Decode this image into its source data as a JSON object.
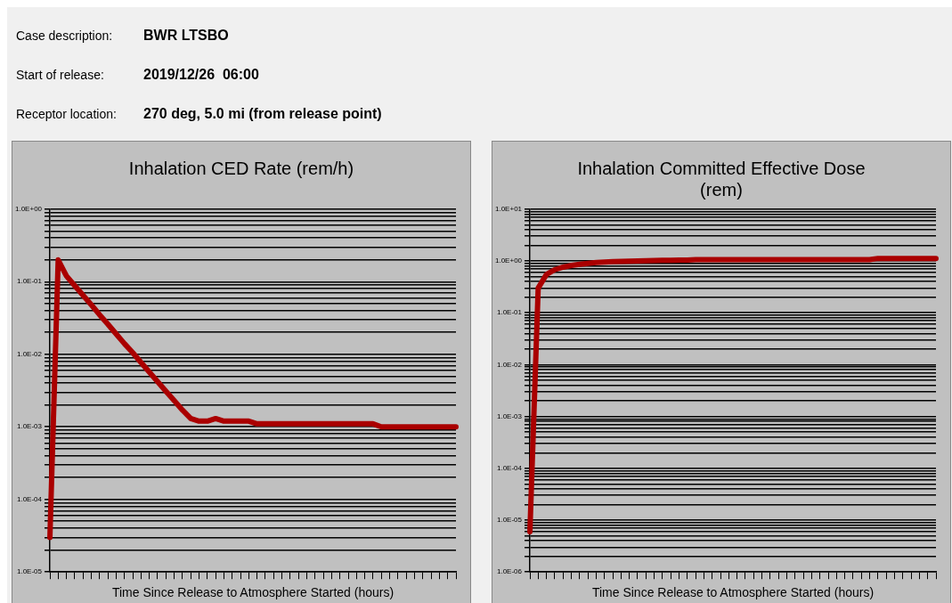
{
  "chart_data": [
    {
      "type": "line",
      "title": "Inhalation CED Rate (rem/h)",
      "xlabel": "Time Since Release to Atmosphere Started (hours)",
      "annotations": [
        "Case description:",
        "BWR LTSBO",
        "Start of release:",
        "2019/12/26  06:00",
        "Receptor location:",
        "270 deg, 5.0 mi (from release point)"
      ],
      "categories": [
        null,
        null,
        null,
        null,
        null,
        null,
        null,
        null,
        null,
        null,
        null,
        null,
        null,
        null,
        null,
        null,
        null,
        null,
        null,
        null,
        null,
        null,
        null,
        null,
        null,
        null,
        null,
        null,
        null,
        null,
        null,
        null,
        null,
        null,
        null,
        null,
        null,
        null,
        null,
        null,
        null,
        null,
        null,
        null,
        null,
        null,
        null,
        null,
        null,
        null
      ],
      "series": [
        {
          "color": "#aa0000",
          "values": [
            3e-05,
            0.2,
            0.12,
            0.088,
            0.065,
            0.048,
            0.035,
            0.026,
            0.019,
            0.014,
            0.0105,
            0.0077,
            0.0057,
            0.0042,
            0.0031,
            0.0023,
            0.0017,
            0.0013,
            0.0012,
            0.0012,
            0.0013,
            0.0012,
            0.0012,
            0.0012,
            0.0012,
            0.0011,
            0.0011,
            0.0011,
            0.0011,
            0.0011,
            0.0011,
            0.0011,
            0.0011,
            0.0011,
            0.0011,
            0.0011,
            0.0011,
            0.0011,
            0.0011,
            0.0011,
            0.001,
            0.001,
            0.001,
            0.001,
            0.001,
            0.001,
            0.001,
            0.001,
            0.001,
            0.001
          ]
        }
      ],
      "log": "y",
      "ylim": [
        1e-05,
        1
      ],
      "grid": "y",
      "tick_labels": "y",
      "line_style": "solid",
      "yticks": [
        {
          "value": 1e-05,
          "label": "1.0E-05"
        },
        {
          "value": 2e-05,
          "label": null
        },
        {
          "value": 3e-05,
          "label": null
        },
        {
          "value": 4e-05,
          "label": null
        },
        {
          "value": 5e-05,
          "label": null
        },
        {
          "value": 6e-05,
          "label": null
        },
        {
          "value": 7e-05,
          "label": null
        },
        {
          "value": 8e-05,
          "label": null
        },
        {
          "value": 9e-05,
          "label": null
        },
        {
          "value": 0.0001,
          "label": "1.0E-04"
        },
        {
          "value": 0.0002,
          "label": null
        },
        {
          "value": 0.0003,
          "label": null
        },
        {
          "value": 0.0004,
          "label": null
        },
        {
          "value": 0.0005,
          "label": null
        },
        {
          "value": 0.0006,
          "label": null
        },
        {
          "value": 0.0007,
          "label": null
        },
        {
          "value": 0.0008,
          "label": null
        },
        {
          "value": 0.0009,
          "label": null
        },
        {
          "value": 0.001,
          "label": "1.0E-03"
        },
        {
          "value": 0.002,
          "label": null
        },
        {
          "value": 0.003,
          "label": null
        },
        {
          "value": 0.004,
          "label": null
        },
        {
          "value": 0.005,
          "label": null
        },
        {
          "value": 0.006,
          "label": null
        },
        {
          "value": 0.007,
          "label": null
        },
        {
          "value": 0.008,
          "label": null
        },
        {
          "value": 0.009,
          "label": null
        },
        {
          "value": 0.01,
          "label": "1.0E-02"
        },
        {
          "value": 0.02,
          "label": null
        },
        {
          "value": 0.03,
          "label": null
        },
        {
          "value": 0.04,
          "label": null
        },
        {
          "value": 0.05,
          "label": null
        },
        {
          "value": 0.06,
          "label": null
        },
        {
          "value": 0.07,
          "label": null
        },
        {
          "value": 0.08,
          "label": null
        },
        {
          "value": 0.09,
          "label": null
        },
        {
          "value": 0.1,
          "label": "1.0E-01"
        },
        {
          "value": 0.2,
          "label": null
        },
        {
          "value": 0.3,
          "label": null
        },
        {
          "value": 0.4,
          "label": null
        },
        {
          "value": 0.5,
          "label": null
        },
        {
          "value": 0.6,
          "label": null
        },
        {
          "value": 0.7,
          "label": null
        },
        {
          "value": 0.8,
          "label": null
        },
        {
          "value": 0.9,
          "label": null
        },
        {
          "value": 1,
          "label": "1.0E+00"
        }
      ]
    },
    {
      "type": "line",
      "title": "Inhalation Committed Effective Dose (rem)",
      "xlabel": "Time Since Release to Atmosphere Started (hours)",
      "categories": [
        null,
        null,
        null,
        null,
        null,
        null,
        null,
        null,
        null,
        null,
        null,
        null,
        null,
        null,
        null,
        null,
        null,
        null,
        null,
        null,
        null,
        null,
        null,
        null,
        null,
        null,
        null,
        null,
        null,
        null,
        null,
        null,
        null,
        null,
        null,
        null,
        null,
        null,
        null,
        null,
        null,
        null,
        null,
        null,
        null,
        null,
        null,
        null,
        null,
        null
      ],
      "series": [
        {
          "color": "#aa0000",
          "values": [
            6e-06,
            0.3,
            0.55,
            0.68,
            0.76,
            0.82,
            0.86,
            0.9,
            0.93,
            0.95,
            0.97,
            0.98,
            0.99,
            1.0,
            1.01,
            1.02,
            1.03,
            1.03,
            1.04,
            1.04,
            1.06,
            1.06,
            1.06,
            1.06,
            1.06,
            1.06,
            1.06,
            1.06,
            1.06,
            1.06,
            1.06,
            1.06,
            1.06,
            1.06,
            1.06,
            1.06,
            1.06,
            1.06,
            1.06,
            1.06,
            1.06,
            1.06,
            1.12,
            1.12,
            1.12,
            1.12,
            1.12,
            1.12,
            1.12,
            1.12
          ]
        }
      ],
      "log": "y",
      "ylim": [
        1e-06,
        10
      ],
      "grid": "y",
      "tick_labels": "y",
      "line_style": "solid",
      "yticks": [
        {
          "value": 1e-06,
          "label": "1.0E-06"
        },
        {
          "value": 2e-06,
          "label": null
        },
        {
          "value": 3e-06,
          "label": null
        },
        {
          "value": 4e-06,
          "label": null
        },
        {
          "value": 5e-06,
          "label": null
        },
        {
          "value": 6e-06,
          "label": null
        },
        {
          "value": 7e-06,
          "label": null
        },
        {
          "value": 8e-06,
          "label": null
        },
        {
          "value": 9e-06,
          "label": null
        },
        {
          "value": 1e-05,
          "label": "1.0E-05"
        },
        {
          "value": 2e-05,
          "label": null
        },
        {
          "value": 3e-05,
          "label": null
        },
        {
          "value": 4e-05,
          "label": null
        },
        {
          "value": 5e-05,
          "label": null
        },
        {
          "value": 6e-05,
          "label": null
        },
        {
          "value": 7e-05,
          "label": null
        },
        {
          "value": 8e-05,
          "label": null
        },
        {
          "value": 9e-05,
          "label": null
        },
        {
          "value": 0.0001,
          "label": "1.0E-04"
        },
        {
          "value": 0.0002,
          "label": null
        },
        {
          "value": 0.0003,
          "label": null
        },
        {
          "value": 0.0004,
          "label": null
        },
        {
          "value": 0.0005,
          "label": null
        },
        {
          "value": 0.0006,
          "label": null
        },
        {
          "value": 0.0007,
          "label": null
        },
        {
          "value": 0.0008,
          "label": null
        },
        {
          "value": 0.0009,
          "label": null
        },
        {
          "value": 0.001,
          "label": "1.0E-03"
        },
        {
          "value": 0.002,
          "label": null
        },
        {
          "value": 0.003,
          "label": null
        },
        {
          "value": 0.004,
          "label": null
        },
        {
          "value": 0.005,
          "label": null
        },
        {
          "value": 0.006,
          "label": null
        },
        {
          "value": 0.007,
          "label": null
        },
        {
          "value": 0.008,
          "label": null
        },
        {
          "value": 0.009,
          "label": null
        },
        {
          "value": 0.01,
          "label": "1.0E-02"
        },
        {
          "value": 0.02,
          "label": null
        },
        {
          "value": 0.03,
          "label": null
        },
        {
          "value": 0.04,
          "label": null
        },
        {
          "value": 0.05,
          "label": null
        },
        {
          "value": 0.06,
          "label": null
        },
        {
          "value": 0.07,
          "label": null
        },
        {
          "value": 0.08,
          "label": null
        },
        {
          "value": 0.09,
          "label": null
        },
        {
          "value": 0.1,
          "label": "1.0E-01"
        },
        {
          "value": 0.2,
          "label": null
        },
        {
          "value": 0.3,
          "label": null
        },
        {
          "value": 0.4,
          "label": null
        },
        {
          "value": 0.5,
          "label": null
        },
        {
          "value": 0.6,
          "label": null
        },
        {
          "value": 0.7,
          "label": null
        },
        {
          "value": 0.8,
          "label": null
        },
        {
          "value": 0.9,
          "label": null
        },
        {
          "value": 1,
          "label": "1.0E+00"
        },
        {
          "value": 2,
          "label": null
        },
        {
          "value": 3,
          "label": null
        },
        {
          "value": 4,
          "label": null
        },
        {
          "value": 5,
          "label": null
        },
        {
          "value": 6,
          "label": null
        },
        {
          "value": 7,
          "label": null
        },
        {
          "value": 8,
          "label": null
        },
        {
          "value": 9,
          "label": null
        },
        {
          "value": 10,
          "label": "1.0E+01"
        }
      ]
    }
  ]
}
